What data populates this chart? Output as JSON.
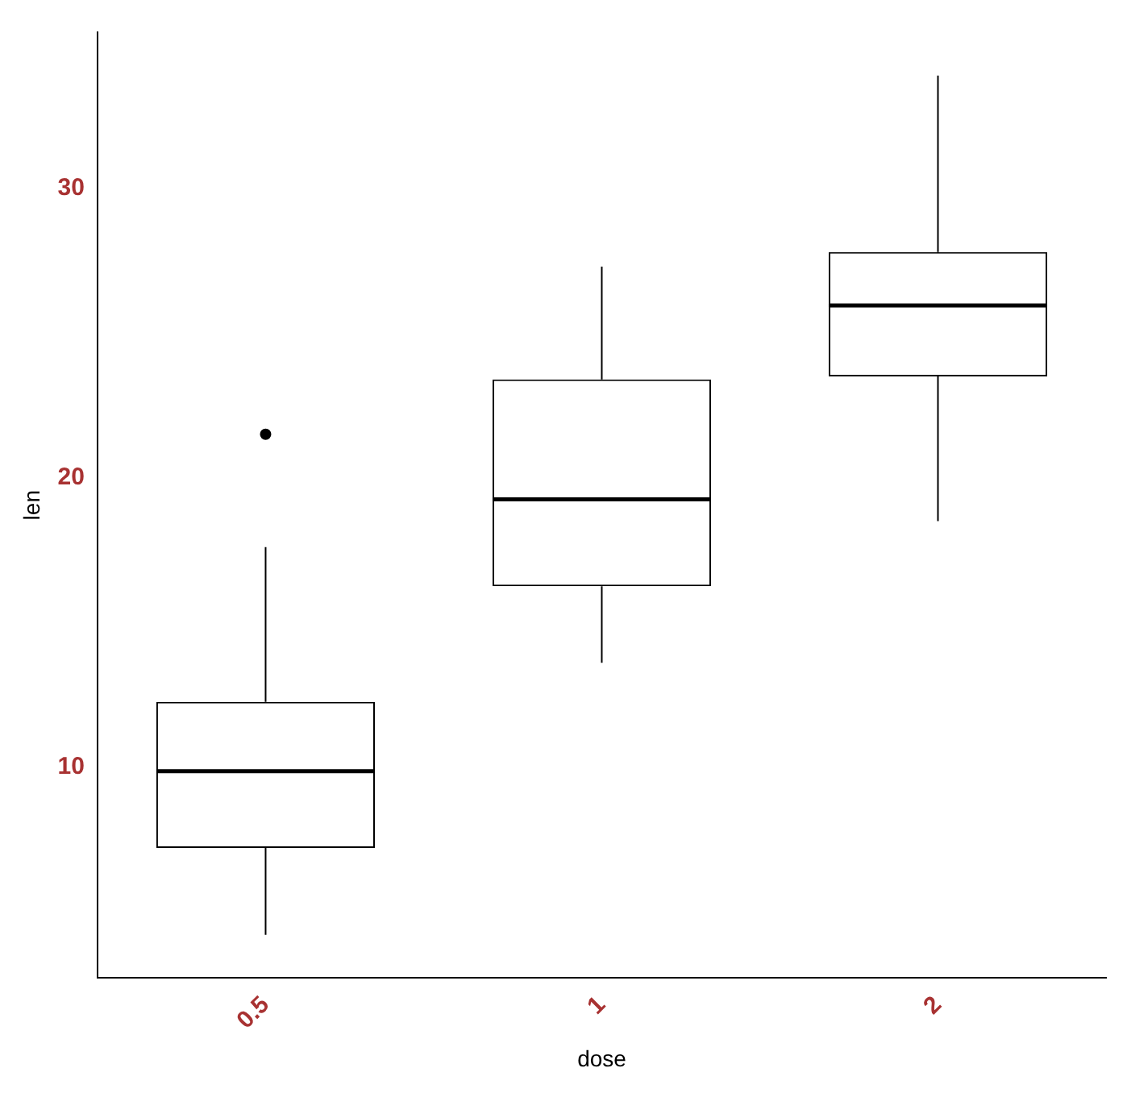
{
  "chart_data": {
    "type": "box",
    "xlabel": "dose",
    "ylabel": "len",
    "categories": [
      "0.5",
      "1",
      "2"
    ],
    "boxes": [
      {
        "low": 4.2,
        "q1": 7.2,
        "median": 9.85,
        "q3": 12.25,
        "high": 17.6,
        "outliers": [
          21.5
        ]
      },
      {
        "low": 13.6,
        "q1": 16.25,
        "median": 19.25,
        "q3": 23.4,
        "high": 27.3
      },
      {
        "low": 18.5,
        "q1": 23.5,
        "median": 25.95,
        "q3": 27.8,
        "high": 33.9
      }
    ],
    "color": "#000000",
    "ylim": [
      2.7,
      35.4
    ],
    "yticks": [
      10,
      20,
      30
    ],
    "grid": false,
    "legend": false
  }
}
